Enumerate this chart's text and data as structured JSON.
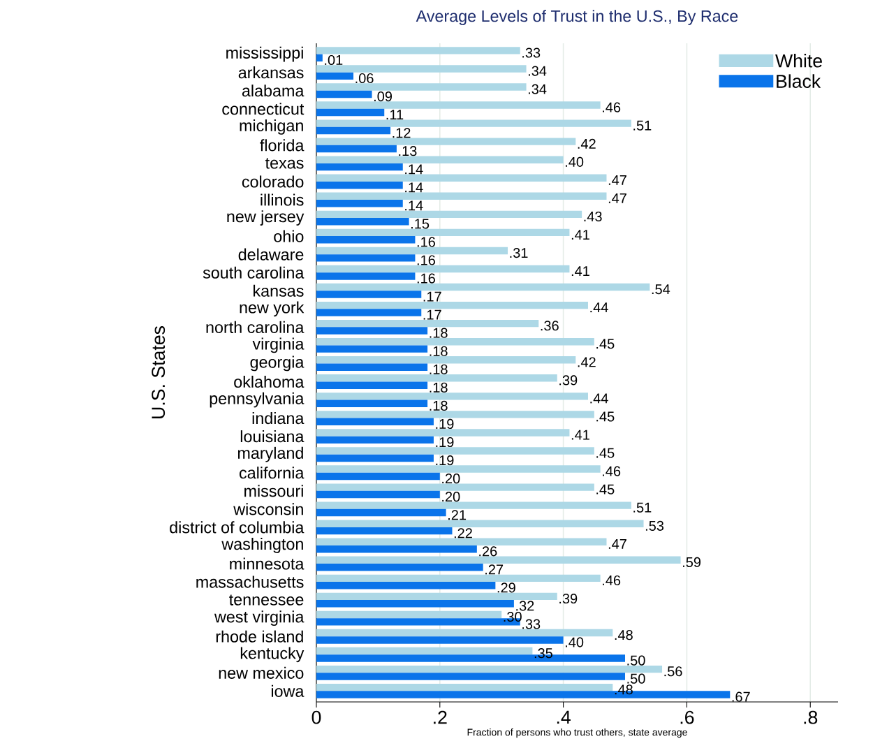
{
  "chart_data": {
    "type": "bar",
    "orientation": "horizontal",
    "title": "Average Levels of Trust in the U.S., By Race",
    "xlabel": "Fraction of persons who trust others, state average",
    "ylabel": "U.S. States",
    "categories": [
      "mississippi",
      "arkansas",
      "alabama",
      "connecticut",
      "michigan",
      "florida",
      "texas",
      "colorado",
      "illinois",
      "new jersey",
      "ohio",
      "delaware",
      "south carolina",
      "kansas",
      "new york",
      "north carolina",
      "virginia",
      "georgia",
      "oklahoma",
      "pennsylvania",
      "indiana",
      "louisiana",
      "maryland",
      "california",
      "missouri",
      "wisconsin",
      "district of columbia",
      "washington",
      "minnesota",
      "massachusetts",
      "tennessee",
      "west virginia",
      "rhode island",
      "kentucky",
      "new mexico",
      "iowa"
    ],
    "series": [
      {
        "name": "White",
        "color": "#add8e6",
        "values": [
          0.33,
          0.34,
          0.34,
          0.46,
          0.51,
          0.42,
          0.4,
          0.47,
          0.47,
          0.43,
          0.41,
          0.31,
          0.41,
          0.54,
          0.44,
          0.36,
          0.45,
          0.42,
          0.39,
          0.44,
          0.45,
          0.41,
          0.45,
          0.46,
          0.45,
          0.51,
          0.53,
          0.47,
          0.59,
          0.46,
          0.39,
          0.3,
          0.48,
          0.35,
          0.56,
          0.48
        ],
        "value_labels": [
          ".33",
          ".34",
          ".34",
          ".46",
          ".51",
          ".42",
          ".40",
          ".47",
          ".47",
          ".43",
          ".41",
          ".31",
          ".41",
          ".54",
          ".44",
          ".36",
          ".45",
          ".42",
          ".39",
          ".44",
          ".45",
          ".41",
          ".45",
          ".46",
          ".45",
          ".51",
          ".53",
          ".47",
          ".59",
          ".46",
          ".39",
          ".30",
          ".48",
          ".35",
          ".56",
          ".48"
        ]
      },
      {
        "name": "Black",
        "color": "#0a74ea",
        "values": [
          0.01,
          0.06,
          0.09,
          0.11,
          0.12,
          0.13,
          0.14,
          0.14,
          0.14,
          0.15,
          0.16,
          0.16,
          0.16,
          0.17,
          0.17,
          0.18,
          0.18,
          0.18,
          0.18,
          0.18,
          0.19,
          0.19,
          0.19,
          0.2,
          0.2,
          0.21,
          0.22,
          0.26,
          0.27,
          0.29,
          0.32,
          0.33,
          0.4,
          0.5,
          0.5,
          0.67
        ],
        "value_labels": [
          ".01",
          ".06",
          ".09",
          ".11",
          ".12",
          ".13",
          ".14",
          ".14",
          ".14",
          ".15",
          ".16",
          ".16",
          ".16",
          ".17",
          ".17",
          ".18",
          ".18",
          ".18",
          ".18",
          ".18",
          ".19",
          ".19",
          ".19",
          ".20",
          ".20",
          ".21",
          ".22",
          ".26",
          ".27",
          ".29",
          ".32",
          ".33",
          ".40",
          ".50",
          ".50",
          ".67"
        ]
      }
    ],
    "xlim": [
      0,
      0.845
    ],
    "xticks": [
      0,
      {
        "value": 0.2,
        "label": ".2"
      },
      {
        "value": 0.4,
        "label": ".4"
      },
      {
        "value": 0.6,
        "label": ".6"
      },
      {
        "value": 0.8,
        "label": ".8"
      }
    ],
    "grid": "x",
    "legend": "top right"
  }
}
